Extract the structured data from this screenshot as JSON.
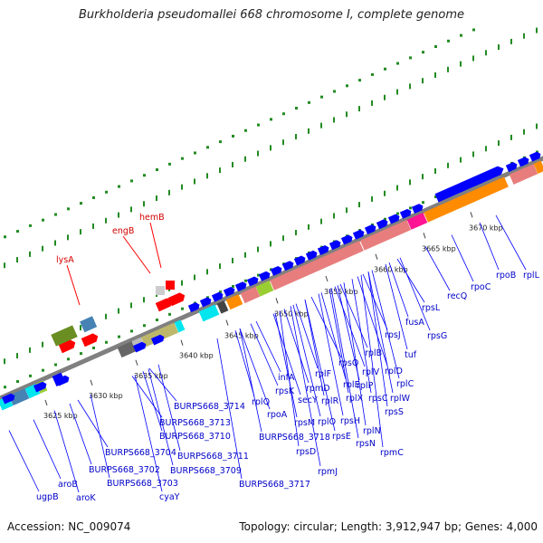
{
  "title": "Burkholderia pseudomallei 668 chromosome I, complete genome",
  "footer": {
    "accession": "Accession: NC_009074",
    "summary": "Topology: circular; Length: 3,912,947 bp; Genes: 4,000"
  },
  "scale_ticks": [
    "3625 kbp",
    "3630 kbp",
    "3635 kbp",
    "3640 kbp",
    "3645 kbp",
    "3650 kbp",
    "3655 kbp",
    "3660 kbp",
    "3665 kbp",
    "3670 kbp"
  ],
  "genes_red": [
    "lysA",
    "engB",
    "hemB"
  ],
  "genes_blue": [
    "ugpB",
    "aroB",
    "aroK",
    "BURPS668_3702",
    "BURPS668_3703",
    "BURPS668_3704",
    "cyaY",
    "BURPS668_3709",
    "BURPS668_3711",
    "BURPS668_3710",
    "BURPS668_3713",
    "BURPS668_3714",
    "BURPS668_3717",
    "BURPS668_3718",
    "rplQ",
    "rpoA",
    "rpsK",
    "infA",
    "rpsM",
    "rpsD",
    "rpmJ",
    "secY",
    "rpmD",
    "rplF",
    "rplR",
    "rpsE",
    "rplO",
    "rpsH",
    "rplN",
    "rplX",
    "rpsQ",
    "rpsN",
    "rplE",
    "rplP",
    "rpsC",
    "rplV",
    "rplB",
    "rplW",
    "rpmC",
    "rpsS",
    "rplD",
    "rplC",
    "rpsJ",
    "tuf",
    "fusA",
    "rpsG",
    "rpsL",
    "recQ",
    "rpoC",
    "rpoB",
    "rplL"
  ],
  "colors": {
    "backbone": "#808080",
    "gene_blue": "#0000ff",
    "gene_red": "#ff0000",
    "rrna_pink": "#e87d7d",
    "orange": "#ff8c00",
    "olive": "#6b8e23",
    "khaki": "#bdb76b",
    "cyan": "#00e5ee",
    "steelblue": "#4682b4",
    "lime": "#9acd32",
    "magenta": "#ff1493",
    "dotted_green": "#228b22"
  }
}
